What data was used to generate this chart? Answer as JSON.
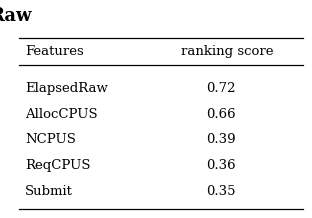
{
  "title_partial": "Raw",
  "col_headers": [
    "Features",
    "ranking score"
  ],
  "rows": [
    [
      "ElapsedRaw",
      "0.72"
    ],
    [
      "AllocCPUS",
      "0.66"
    ],
    [
      "NCPUS",
      "0.39"
    ],
    [
      "ReqCPUS",
      "0.36"
    ],
    [
      "Submit",
      "0.35"
    ]
  ],
  "background_color": "#ffffff",
  "text_color": "#000000",
  "line_color": "#000000",
  "title_fontsize": 13,
  "header_fontsize": 9.5,
  "data_fontsize": 9.5,
  "fig_width": 3.12,
  "fig_height": 2.18,
  "dpi": 100
}
